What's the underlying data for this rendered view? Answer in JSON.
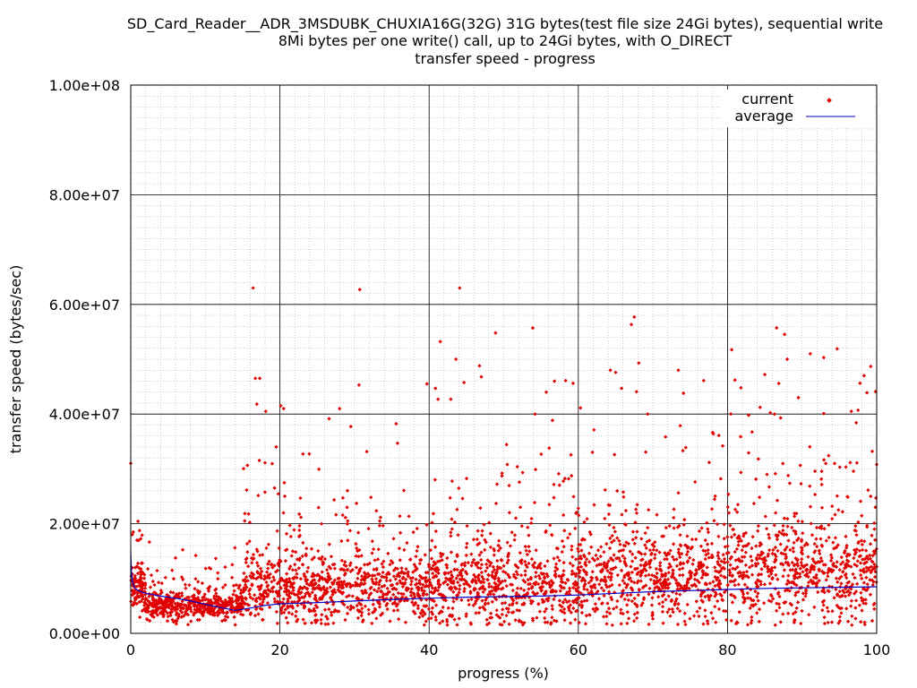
{
  "chart_data": {
    "type": "scatter",
    "title_lines": [
      "SD_Card_Reader__ADR_3MSDUBK_CHUXIA16G(32G) 31G bytes(test file size 24Gi bytes), sequential write",
      "8Mi bytes per one write() call, up to 24Gi bytes, with O_DIRECT",
      "transfer speed - progress"
    ],
    "xlabel": "progress (%)",
    "ylabel": "transfer speed (bytes/sec)",
    "xlim": [
      0,
      100
    ],
    "ylim": [
      0,
      100000000
    ],
    "x_ticks": [
      0,
      20,
      40,
      60,
      80,
      100
    ],
    "x_tick_labels": [
      "0",
      "20",
      "40",
      "60",
      "80",
      "100"
    ],
    "y_ticks": [
      0,
      20000000,
      40000000,
      60000000,
      80000000,
      100000000
    ],
    "y_tick_labels": [
      "0.00e+00",
      "2.00e+07",
      "4.00e+07",
      "6.00e+07",
      "8.00e+07",
      "1.00e+08"
    ],
    "grid": true,
    "legend_position": "top-right",
    "colors": {
      "current": "#e00000",
      "average": "#0000c8",
      "grid_major": "#000000",
      "grid_minor": "#a0a0a0"
    },
    "series": [
      {
        "name": "current",
        "kind": "points",
        "approximate_distribution": [
          {
            "x_range": [
              0,
              2
            ],
            "y_mean": 8000000,
            "y_spread": 3500000,
            "count": 120
          },
          {
            "x_range": [
              2,
              15
            ],
            "y_mean": 5000000,
            "y_spread": 2200000,
            "count": 520
          },
          {
            "x_range": [
              15,
              20
            ],
            "y_mean": 8500000,
            "y_spread": 6000000,
            "count": 180
          },
          {
            "x_range": [
              20,
              40
            ],
            "y_mean": 8000000,
            "y_spread": 6000000,
            "count": 700
          },
          {
            "x_range": [
              40,
              60
            ],
            "y_mean": 9000000,
            "y_spread": 7000000,
            "count": 700
          },
          {
            "x_range": [
              60,
              80
            ],
            "y_mean": 10000000,
            "y_spread": 7500000,
            "count": 700
          },
          {
            "x_range": [
              80,
              100
            ],
            "y_mean": 11000000,
            "y_spread": 8000000,
            "count": 700
          }
        ],
        "outliers": [
          [
            0,
            31000000
          ],
          [
            16.4,
            63000000
          ],
          [
            16.7,
            46500000
          ],
          [
            17.3,
            46500000
          ],
          [
            18.1,
            40500000
          ],
          [
            19.5,
            34000000
          ],
          [
            20.1,
            41500000
          ],
          [
            20.5,
            41000000
          ],
          [
            28.0,
            41000000
          ],
          [
            30.7,
            62700000
          ],
          [
            30.6,
            45300000
          ],
          [
            39.7,
            45500000
          ],
          [
            41.2,
            42700000
          ],
          [
            41.5,
            53200000
          ],
          [
            42.9,
            42700000
          ],
          [
            43.6,
            50000000
          ],
          [
            44.1,
            63000000
          ],
          [
            47.0,
            46800000
          ],
          [
            48.9,
            54800000
          ],
          [
            53.9,
            55700000
          ],
          [
            54.2,
            40000000
          ],
          [
            55.7,
            44000000
          ],
          [
            56.8,
            46000000
          ],
          [
            58.3,
            46100000
          ],
          [
            64.3,
            48000000
          ],
          [
            65.0,
            47600000
          ],
          [
            67.5,
            57700000
          ],
          [
            68.1,
            49300000
          ],
          [
            69.3,
            40000000
          ],
          [
            73.4,
            48000000
          ],
          [
            74.1,
            43800000
          ],
          [
            76.8,
            46100000
          ],
          [
            81.0,
            46200000
          ],
          [
            81.8,
            44800000
          ],
          [
            85.0,
            47200000
          ],
          [
            86.3,
            40000000
          ],
          [
            88.0,
            50000000
          ],
          [
            89.5,
            43000000
          ],
          [
            91.1,
            51000000
          ],
          [
            92.9,
            50300000
          ],
          [
            94.7,
            51900000
          ],
          [
            96.6,
            40500000
          ],
          [
            97.5,
            40700000
          ],
          [
            98.3,
            47000000
          ],
          [
            98.7,
            43900000
          ],
          [
            99.4,
            33200000
          ],
          [
            100,
            30800000
          ]
        ]
      },
      {
        "name": "average",
        "kind": "line",
        "x": [
          0,
          0.1,
          0.3,
          0.6,
          1,
          2,
          4,
          6,
          8,
          10,
          12,
          14,
          16,
          18,
          20,
          25,
          30,
          35,
          40,
          45,
          50,
          55,
          60,
          65,
          70,
          75,
          80,
          85,
          90,
          95,
          100
        ],
        "y": [
          15000000,
          11000000,
          9000000,
          8200000,
          7800000,
          7300000,
          6800000,
          6400000,
          5900000,
          5300000,
          4700000,
          4200000,
          4600000,
          5100000,
          5400000,
          5600000,
          5900000,
          6200000,
          6400000,
          6600000,
          6700000,
          6800000,
          7000000,
          7300000,
          7600000,
          7800000,
          8000000,
          8200000,
          8300000,
          8400000,
          8500000
        ]
      }
    ]
  }
}
